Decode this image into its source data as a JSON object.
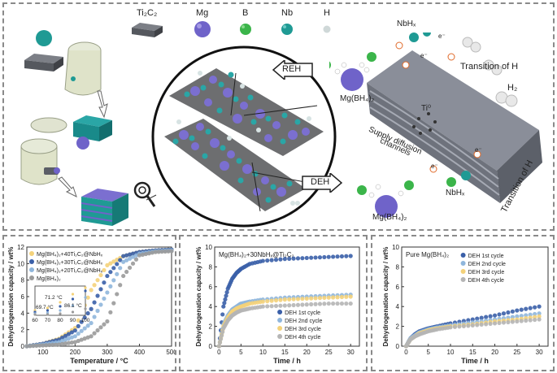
{
  "legend_items": [
    {
      "id": "ti2c2",
      "label": "Ti₂C₂",
      "color": "#5b5e66"
    },
    {
      "id": "mg",
      "label": "Mg",
      "color": "#6f63c9"
    },
    {
      "id": "b",
      "label": "B",
      "color": "#3bb54a"
    },
    {
      "id": "nb",
      "label": "Nb",
      "color": "#1f9a94"
    },
    {
      "id": "h",
      "label": "H",
      "color": "#cfd8d8"
    }
  ],
  "scheme": {
    "reh_label": "REH",
    "deh_label": "DEH",
    "mgbh4_top": "Mg(BH₄)₂",
    "mgbh4_bottom": "Mg(BH₄)₂",
    "nbhx_top": "NbHₓ",
    "nbhx_bottom": "NbHₓ",
    "transition_top": "Transition of H",
    "transition_bottom": "Transition of H",
    "h2": "H₂",
    "ti": "Ti⁰",
    "supply": "Supply diffusion",
    "channels": "channels",
    "electron": "e⁻"
  },
  "chart_data": [
    {
      "type": "line",
      "xlabel": "Temperature / °C",
      "ylabel": "Dehydrogenation capacity / wt%",
      "xlim": [
        50,
        500
      ],
      "ylim": [
        0,
        12
      ],
      "xticks": [
        100,
        200,
        300,
        400,
        500
      ],
      "yticks": [
        0,
        2,
        4,
        6,
        8,
        10,
        12
      ],
      "legend_position": "top-left",
      "series": [
        {
          "name": "Mg(BH₄)₂+40Ti₂C₂@NbHₓ",
          "color": "#f4d27a",
          "x": [
            50,
            100,
            150,
            200,
            250,
            300,
            350,
            400,
            450,
            500
          ],
          "y": [
            0,
            0.3,
            0.9,
            2.2,
            6.8,
            9.8,
            10.9,
            11.4,
            11.6,
            11.7
          ]
        },
        {
          "name": "Mg(BH₄)₂+30Ti₂C₂@NbHₓ",
          "color": "#3a5fa8",
          "x": [
            50,
            100,
            150,
            200,
            250,
            300,
            350,
            400,
            450,
            500
          ],
          "y": [
            0,
            0.3,
            0.8,
            1.9,
            4.5,
            8.5,
            10.9,
            11.4,
            11.6,
            11.7
          ]
        },
        {
          "name": "Mg(BH₄)₂+20Ti₂C₂@NbHₓ",
          "color": "#8fb6dc",
          "x": [
            50,
            100,
            150,
            200,
            250,
            300,
            350,
            400,
            450,
            500
          ],
          "y": [
            0,
            0.2,
            0.5,
            1.2,
            2.8,
            6.5,
            10.2,
            11.2,
            11.5,
            11.6
          ]
        },
        {
          "name": "Mg(BH₄)₂",
          "color": "#9a9a9a",
          "x": [
            50,
            100,
            150,
            200,
            250,
            300,
            350,
            400,
            450,
            500
          ],
          "y": [
            0,
            0.1,
            0.2,
            0.5,
            1.2,
            3.0,
            8.5,
            11.0,
            11.4,
            11.5
          ]
        }
      ],
      "inset": {
        "xlim": [
          60,
          100
        ],
        "xticks": [
          60,
          70,
          80,
          90,
          100
        ],
        "annotations": [
          "69.7 °C",
          "71.2 °C",
          "86.1 °C"
        ]
      }
    },
    {
      "type": "line",
      "title": "Mg(BH₄)₂+30NbHₓ@Ti₂C₂",
      "xlabel": "Time / h",
      "ylabel": "Dehydrogenation capacity / wt%",
      "xlim": [
        -1,
        32
      ],
      "ylim": [
        0,
        10
      ],
      "xticks": [
        0,
        5,
        10,
        15,
        20,
        25,
        30
      ],
      "yticks": [
        0,
        2,
        4,
        6,
        8,
        10
      ],
      "legend_position": "bottom-right",
      "series": [
        {
          "name": "DEH 1st cycle",
          "color": "#3a5fa8",
          "x": [
            0,
            1,
            2,
            3,
            4,
            5,
            7,
            10,
            15,
            20,
            25,
            30
          ],
          "y": [
            0,
            4.0,
            5.8,
            6.8,
            7.4,
            7.8,
            8.3,
            8.6,
            8.8,
            8.9,
            9.0,
            9.1
          ]
        },
        {
          "name": "DEH 2nd cycle",
          "color": "#8fb6dc",
          "x": [
            0,
            1,
            2,
            3,
            4,
            5,
            7,
            10,
            15,
            20,
            25,
            30
          ],
          "y": [
            0,
            2.2,
            3.1,
            3.7,
            4.0,
            4.3,
            4.5,
            4.7,
            4.9,
            5.0,
            5.1,
            5.2
          ]
        },
        {
          "name": "DEH 3rd cycle",
          "color": "#f4d27a",
          "x": [
            0,
            1,
            2,
            3,
            4,
            5,
            7,
            10,
            15,
            20,
            25,
            30
          ],
          "y": [
            0,
            2.0,
            2.9,
            3.5,
            3.8,
            4.0,
            4.3,
            4.5,
            4.7,
            4.8,
            4.9,
            5.0
          ]
        },
        {
          "name": "DEH 4th cycle",
          "color": "#b5b5b5",
          "x": [
            0,
            1,
            2,
            3,
            4,
            5,
            7,
            10,
            15,
            20,
            25,
            30
          ],
          "y": [
            0,
            1.8,
            2.6,
            3.1,
            3.4,
            3.6,
            3.8,
            4.0,
            4.1,
            4.2,
            4.3,
            4.3
          ]
        }
      ]
    },
    {
      "type": "line",
      "title": "Pure Mg(BH₄)₂",
      "xlabel": "Time / h",
      "ylabel": "Dehydrogenation capacity / wt%",
      "xlim": [
        -1,
        32
      ],
      "ylim": [
        0,
        10
      ],
      "xticks": [
        0,
        5,
        10,
        15,
        20,
        25,
        30
      ],
      "yticks": [
        0,
        2,
        4,
        6,
        8,
        10
      ],
      "legend_position": "top-right",
      "series": [
        {
          "name": "DEH 1st cycle",
          "color": "#3a5fa8",
          "x": [
            0,
            1,
            2,
            3,
            5,
            7,
            10,
            15,
            20,
            25,
            30
          ],
          "y": [
            0,
            0.8,
            1.2,
            1.5,
            1.8,
            2.0,
            2.3,
            2.7,
            3.1,
            3.6,
            4.0
          ]
        },
        {
          "name": "DEH 2nd cycle",
          "color": "#8fb6dc",
          "x": [
            0,
            1,
            2,
            3,
            5,
            7,
            10,
            15,
            20,
            25,
            30
          ],
          "y": [
            0,
            0.8,
            1.1,
            1.4,
            1.7,
            1.9,
            2.1,
            2.4,
            2.7,
            3.0,
            3.3
          ]
        },
        {
          "name": "DEH 3rd cycle",
          "color": "#f4d27a",
          "x": [
            0,
            1,
            2,
            3,
            5,
            7,
            10,
            15,
            20,
            25,
            30
          ],
          "y": [
            0,
            0.7,
            1.0,
            1.3,
            1.6,
            1.8,
            2.0,
            2.2,
            2.5,
            2.7,
            3.0
          ]
        },
        {
          "name": "DEH 4th cycle",
          "color": "#b5b5b5",
          "x": [
            0,
            1,
            2,
            3,
            5,
            7,
            10,
            15,
            20,
            25,
            30
          ],
          "y": [
            0,
            0.7,
            1.0,
            1.2,
            1.5,
            1.7,
            1.9,
            2.1,
            2.3,
            2.5,
            2.7
          ]
        }
      ]
    }
  ]
}
